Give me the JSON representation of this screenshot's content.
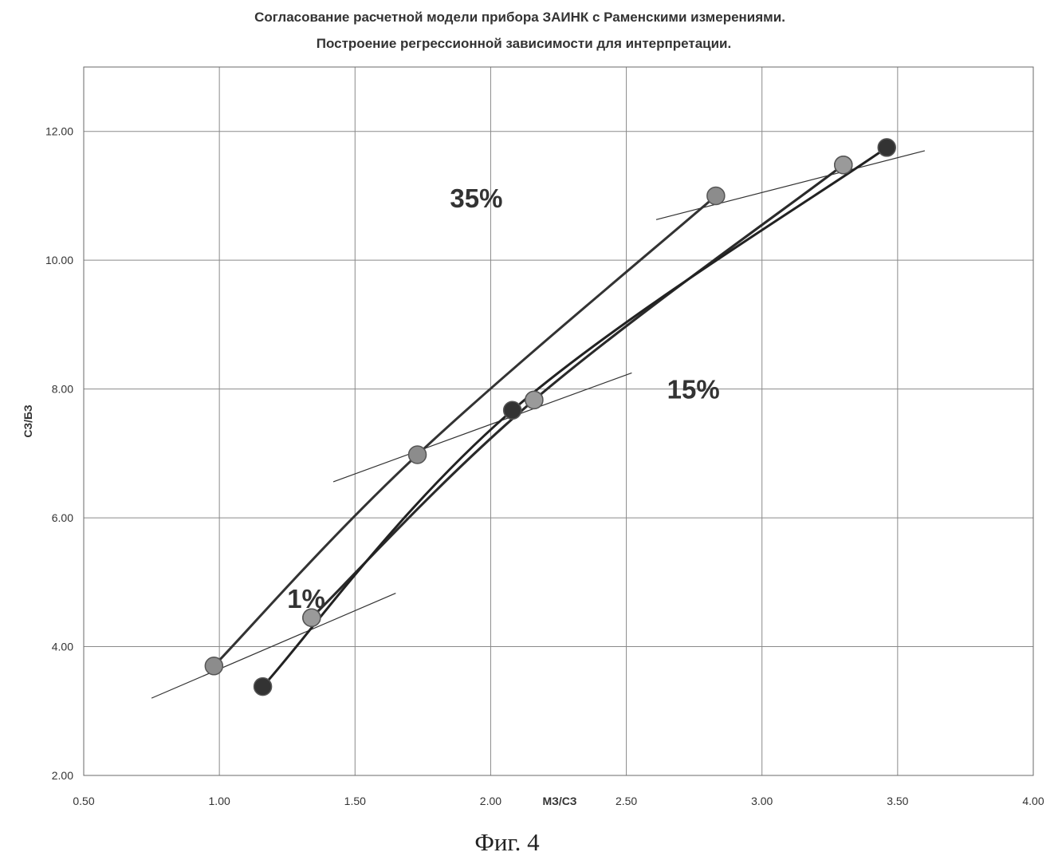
{
  "figure": {
    "caption": "Фиг. 4"
  },
  "chart_data": {
    "type": "line",
    "title": [
      "Согласование расчетной модели прибора ЗАИНК с Раменскими измерениями.",
      "Построение регрессионной зависимости для интерпретации."
    ],
    "xlabel": "МЗ/СЗ",
    "ylabel": "СЗ/БЗ",
    "xlim": [
      0.5,
      4.0
    ],
    "ylim": [
      2.0,
      13.0
    ],
    "x_ticks": [
      0.5,
      1.0,
      1.5,
      2.0,
      2.5,
      3.0,
      3.5,
      4.0
    ],
    "x_tick_labels": [
      "0.50",
      "1.00",
      "1.50",
      "2.00",
      "2.50",
      "3.00",
      "3.50",
      "4.00"
    ],
    "y_ticks": [
      2,
      4,
      6,
      8,
      10,
      12
    ],
    "y_tick_labels": [
      "2.00",
      "4.00",
      "6.00",
      "8.00",
      "10.00",
      "12.00"
    ],
    "grid": true,
    "series": [
      {
        "points": [
          [
            0.98,
            3.7
          ],
          [
            1.73,
            6.98
          ],
          [
            2.83,
            11.0
          ]
        ],
        "color": "#333333",
        "marker_color": "#8c8c8c"
      },
      {
        "points": [
          [
            1.34,
            4.45
          ],
          [
            2.16,
            7.83
          ],
          [
            3.3,
            11.48
          ]
        ],
        "color": "#8a8a8a",
        "marker_color": "#9a9a9a"
      },
      {
        "points": [
          [
            1.34,
            4.45
          ],
          [
            2.16,
            7.83
          ],
          [
            3.3,
            11.48
          ]
        ],
        "color": "#2a2a2a",
        "marker_color": "#9a9a9a"
      },
      {
        "points": [
          [
            1.16,
            3.38
          ],
          [
            2.08,
            7.67
          ],
          [
            3.46,
            11.75
          ]
        ],
        "color": "#222222",
        "marker_color": "#333333"
      }
    ],
    "trend_lines": [
      {
        "from": [
          0.75,
          3.2
        ],
        "to": [
          1.65,
          4.83
        ]
      },
      {
        "from": [
          1.42,
          6.56
        ],
        "to": [
          2.52,
          8.25
        ]
      },
      {
        "from": [
          2.61,
          10.63
        ],
        "to": [
          3.6,
          11.7
        ]
      }
    ],
    "annotations": [
      {
        "text": "35%",
        "x": 1.85,
        "y": 10.82
      },
      {
        "text": "15%",
        "x": 2.65,
        "y": 7.85
      },
      {
        "text": "1%",
        "x": 1.25,
        "y": 4.6
      }
    ]
  }
}
